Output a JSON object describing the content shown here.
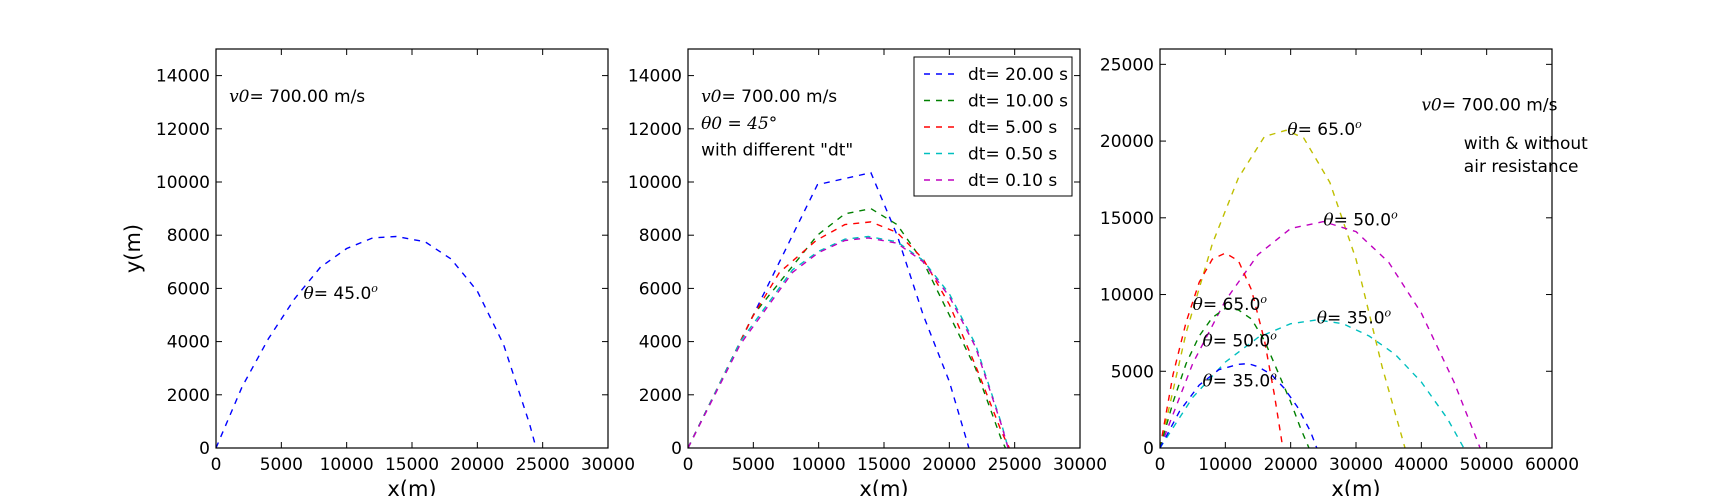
{
  "chart_data": [
    {
      "type": "line",
      "xlabel": "x(m)",
      "ylabel": "y(m)",
      "xlim": [
        0,
        30000
      ],
      "ylim": [
        0,
        15000
      ],
      "xticks": [
        0,
        5000,
        10000,
        15000,
        20000,
        25000,
        30000
      ],
      "yticks": [
        0,
        2000,
        4000,
        6000,
        8000,
        10000,
        12000,
        14000
      ],
      "grid": false,
      "text_lines": [
        {
          "id": "v0",
          "math": "v0",
          "text": "= 700.00 m/s",
          "x": 1000,
          "y": 13000
        }
      ],
      "annotations": [
        {
          "math": "θ",
          "text": "= 45.0",
          "sup": "o",
          "x": 6700,
          "y": 5600
        }
      ],
      "series": [
        {
          "color": "#0000ff",
          "dash": "dashed",
          "x": [
            0,
            2000,
            4000,
            6000,
            8000,
            10000,
            12000,
            13800,
            16000,
            18000,
            20000,
            22000,
            24000,
            24500
          ],
          "y": [
            0,
            2300,
            4100,
            5600,
            6800,
            7500,
            7900,
            7950,
            7750,
            7100,
            5900,
            3900,
            900,
            0
          ]
        }
      ]
    },
    {
      "type": "line",
      "xlabel": "x(m)",
      "ylabel": "",
      "xlim": [
        0,
        30000
      ],
      "ylim": [
        0,
        15000
      ],
      "xticks": [
        0,
        5000,
        10000,
        15000,
        20000,
        25000,
        30000
      ],
      "yticks": [
        0,
        2000,
        4000,
        6000,
        8000,
        10000,
        12000,
        14000
      ],
      "grid": false,
      "legend_position": "upper right",
      "text_lines": [
        {
          "id": "v0",
          "math": "v0",
          "text": "= 700.00 m/s",
          "x": 1000,
          "y": 13000
        },
        {
          "id": "theta0",
          "math": "θ0 = 45°",
          "text": "",
          "x": 1000,
          "y": 12000
        },
        {
          "id": "dt_note",
          "math": "",
          "text": "with different \"dt\"",
          "x": 1000,
          "y": 11000
        }
      ],
      "annotations": [],
      "series": [
        {
          "name": "dt= 20.00 s",
          "color": "#0000ff",
          "dash": "dashed",
          "x": [
            0,
            9900,
            14000,
            16000,
            18000,
            20000,
            21500
          ],
          "y": [
            0,
            9900,
            10350,
            8000,
            5000,
            2500,
            0
          ]
        },
        {
          "name": "dt= 10.00 s",
          "color": "#008000",
          "dash": "dashed",
          "x": [
            0,
            5000,
            9900,
            12000,
            14000,
            16000,
            18000,
            20000,
            22000,
            24000,
            24300
          ],
          "y": [
            0,
            5000,
            8000,
            8800,
            9000,
            8400,
            7000,
            5000,
            3000,
            300,
            0
          ]
        },
        {
          "name": "dt= 5.00 s",
          "color": "#ff0000",
          "dash": "dashed",
          "x": [
            0,
            4900,
            7000,
            9800,
            12000,
            14000,
            16000,
            18000,
            20000,
            22000,
            24000,
            24600
          ],
          "y": [
            0,
            4900,
            6600,
            7800,
            8400,
            8500,
            8100,
            7100,
            5400,
            3100,
            600,
            0
          ]
        },
        {
          "name": "dt= 0.50 s",
          "color": "#00bfbf",
          "dash": "dashed",
          "x": [
            0,
            4000,
            8000,
            10000,
            12000,
            13800,
            16000,
            18000,
            20000,
            22000,
            24000,
            24500
          ],
          "y": [
            0,
            4000,
            6700,
            7400,
            7850,
            7950,
            7750,
            7050,
            5800,
            3900,
            900,
            0
          ]
        },
        {
          "name": "dt= 0.10 s",
          "color": "#bf00bf",
          "dash": "dashed",
          "x": [
            0,
            4000,
            8000,
            10000,
            12000,
            13800,
            16000,
            18000,
            20000,
            22000,
            24000,
            24500
          ],
          "y": [
            0,
            3900,
            6600,
            7350,
            7800,
            7900,
            7700,
            7000,
            5700,
            3800,
            850,
            0
          ]
        }
      ]
    },
    {
      "type": "line",
      "xlabel": "x(m)",
      "ylabel": "",
      "xlim": [
        0,
        60000
      ],
      "ylim": [
        0,
        26000
      ],
      "xticks": [
        0,
        10000,
        20000,
        30000,
        40000,
        50000,
        60000
      ],
      "yticks": [
        0,
        5000,
        10000,
        15000,
        20000,
        25000
      ],
      "grid": false,
      "text_lines": [
        {
          "id": "v0",
          "math": "v0",
          "text": "= 700.00 m/s",
          "x": 40000,
          "y": 22000
        },
        {
          "id": "air1",
          "math": "",
          "text": "with & without",
          "x": 46500,
          "y": 19500
        },
        {
          "id": "air2",
          "math": "",
          "text": "air resistance",
          "x": 46500,
          "y": 18000
        }
      ],
      "annotations": [
        {
          "math": "θ",
          "text": "= 65.0",
          "sup": "o",
          "x": 19500,
          "y": 20400
        },
        {
          "math": "θ",
          "text": "= 50.0",
          "sup": "o",
          "x": 25000,
          "y": 14500
        },
        {
          "math": "θ",
          "text": "= 35.0",
          "sup": "o",
          "x": 24000,
          "y": 8100
        },
        {
          "math": "θ",
          "text": "= 65.0",
          "sup": "o",
          "x": 5000,
          "y": 9000
        },
        {
          "math": "θ",
          "text": "= 50.0",
          "sup": "o",
          "x": 6500,
          "y": 6600
        },
        {
          "math": "θ",
          "text": "= 35.0",
          "sup": "o",
          "x": 6500,
          "y": 4000
        }
      ],
      "series": [
        {
          "color": "#bfbf00",
          "dash": "dashed",
          "x": [
            0,
            4000,
            8000,
            12000,
            16000,
            19300,
            22000,
            26000,
            30000,
            34000,
            37500
          ],
          "y": [
            0,
            7500,
            13300,
            17600,
            20300,
            20700,
            20200,
            17300,
            12300,
            5300,
            0
          ]
        },
        {
          "color": "#bf00bf",
          "dash": "dashed",
          "x": [
            0,
            5000,
            10000,
            15000,
            20000,
            25000,
            30000,
            35000,
            40000,
            45000,
            49000
          ],
          "y": [
            0,
            5500,
            9600,
            12600,
            14300,
            14750,
            14100,
            12100,
            8800,
            4300,
            0
          ]
        },
        {
          "color": "#00bfbf",
          "dash": "dashed",
          "x": [
            0,
            5000,
            10000,
            15000,
            20000,
            24000,
            28000,
            32000,
            36000,
            40000,
            44000,
            46500
          ],
          "y": [
            0,
            3300,
            5600,
            7200,
            8100,
            8350,
            8100,
            7300,
            6100,
            4300,
            1900,
            0
          ]
        },
        {
          "color": "#ff0000",
          "dash": "dashed",
          "x": [
            0,
            2000,
            4000,
            6000,
            8000,
            10000,
            12000,
            14000,
            16000,
            17500,
            18500,
            18800
          ],
          "y": [
            0,
            4800,
            8200,
            10800,
            12300,
            12700,
            12200,
            10300,
            7000,
            3500,
            800,
            0
          ]
        },
        {
          "color": "#008000",
          "dash": "dashed",
          "x": [
            0,
            2000,
            4000,
            6000,
            8000,
            10000,
            12000,
            14000,
            16000,
            18000,
            20000,
            21500,
            22800
          ],
          "y": [
            0,
            3000,
            5500,
            7300,
            8500,
            9100,
            9000,
            8400,
            7000,
            5000,
            3000,
            1300,
            0
          ]
        },
        {
          "color": "#0000ff",
          "dash": "dashed",
          "x": [
            0,
            3000,
            6000,
            9000,
            12000,
            13500,
            15000,
            17000,
            19000,
            21000,
            23000,
            24000
          ],
          "y": [
            0,
            2400,
            4100,
            5100,
            5450,
            5500,
            5300,
            4800,
            3900,
            2700,
            1100,
            0
          ]
        }
      ]
    }
  ]
}
